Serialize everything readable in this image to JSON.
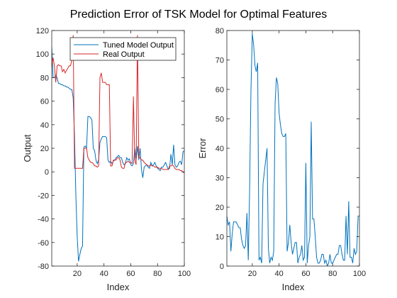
{
  "title": "Prediction Error of TSK Model for Optimal Features",
  "colors": {
    "tuned": "#0072BD",
    "real": "#D62728",
    "axis": "#262626"
  },
  "chart_data": [
    {
      "type": "line",
      "xlabel": "Index",
      "ylabel": "Output",
      "xlim": [
        1,
        100
      ],
      "ylim": [
        -80,
        120
      ],
      "xticks": [
        "20",
        "40",
        "60",
        "80",
        "100"
      ],
      "yticks": [
        "-80",
        "-60",
        "-40",
        "-20",
        "0",
        "20",
        "40",
        "60",
        "80",
        "100",
        "120"
      ],
      "legend": {
        "placement": "top-right",
        "entries": [
          "Tuned Model Output",
          "Real Output"
        ]
      },
      "series": [
        {
          "name": "Tuned Model Output",
          "color": "#0072BD",
          "x": [
            1,
            2,
            3,
            4,
            5,
            6,
            7,
            8,
            9,
            10,
            11,
            12,
            13,
            14,
            15,
            16,
            17,
            18,
            19,
            20,
            21,
            22,
            23,
            24,
            25,
            26,
            27,
            28,
            29,
            30,
            31,
            32,
            33,
            34,
            35,
            36,
            37,
            38,
            39,
            40,
            41,
            42,
            43,
            44,
            45,
            46,
            47,
            48,
            49,
            50,
            51,
            52,
            53,
            54,
            55,
            56,
            57,
            58,
            59,
            60,
            61,
            62,
            63,
            64,
            65,
            66,
            67,
            68,
            69,
            70,
            71,
            72,
            73,
            74,
            75,
            76,
            77,
            78,
            79,
            80,
            81,
            82,
            83,
            84,
            85,
            86,
            87,
            88,
            89,
            90,
            91,
            92,
            93,
            94,
            95,
            96,
            97,
            98,
            99,
            100
          ],
          "values": [
            106,
            80,
            80,
            82,
            80,
            75,
            75,
            74,
            74,
            73,
            73,
            72,
            72,
            71,
            70,
            70,
            63,
            30,
            -20,
            -55,
            -76,
            -70,
            -65,
            -63,
            21,
            22,
            20,
            47,
            47,
            46,
            44,
            20,
            18,
            10,
            7,
            10,
            25,
            28,
            30,
            30,
            30,
            29,
            10,
            8,
            9,
            7,
            9,
            10,
            12,
            13,
            14,
            12,
            12,
            8,
            6,
            7,
            12,
            10,
            11,
            6,
            5,
            7,
            20,
            10,
            22,
            10,
            20,
            2,
            -5,
            4,
            5,
            6,
            4,
            3,
            8,
            5,
            6,
            8,
            5,
            3,
            2,
            1,
            4,
            4,
            6,
            8,
            5,
            2,
            3,
            15,
            6,
            23,
            6,
            4,
            5,
            8,
            9,
            6,
            17,
            18
          ]
        },
        {
          "name": "Real Output",
          "color": "#D62728",
          "x": [
            1,
            2,
            3,
            4,
            5,
            6,
            7,
            8,
            9,
            10,
            11,
            12,
            13,
            14,
            15,
            16,
            17,
            18,
            19,
            20,
            21,
            22,
            23,
            24,
            25,
            26,
            27,
            28,
            29,
            30,
            31,
            32,
            33,
            34,
            35,
            36,
            37,
            38,
            39,
            40,
            41,
            42,
            43,
            44,
            45,
            46,
            47,
            48,
            49,
            50,
            51,
            52,
            53,
            54,
            55,
            56,
            57,
            58,
            59,
            60,
            61,
            62,
            63,
            64,
            65,
            66,
            67,
            68,
            69,
            70,
            71,
            72,
            73,
            74,
            75,
            76,
            77,
            78,
            79,
            80,
            81,
            82,
            83,
            84,
            85,
            86,
            87,
            88,
            89,
            90,
            91,
            92,
            93,
            94,
            95,
            96,
            97,
            98,
            99,
            100
          ],
          "values": [
            89,
            97,
            90,
            76,
            90,
            91,
            90,
            90,
            85,
            87,
            84,
            86,
            88,
            90,
            90,
            95,
            116,
            3,
            3,
            3,
            3,
            3,
            3,
            3,
            20,
            20,
            20,
            12,
            10,
            8,
            8,
            7,
            5,
            5,
            4,
            5,
            80,
            84,
            76,
            76,
            76,
            74,
            74,
            74,
            5,
            5,
            10,
            10,
            10,
            12,
            12,
            10,
            4,
            3,
            3,
            8,
            8,
            9,
            8,
            8,
            7,
            64,
            10,
            6,
            116,
            12,
            12,
            10,
            10,
            8,
            7,
            6,
            5,
            5,
            6,
            5,
            5,
            4,
            4,
            4,
            3,
            3,
            3,
            2,
            2,
            2,
            2,
            2,
            5,
            5,
            6,
            5,
            3,
            2,
            2,
            2,
            1,
            1,
            0,
            -1
          ]
        }
      ]
    },
    {
      "type": "line",
      "xlabel": "Index",
      "ylabel": "Error",
      "xlim": [
        1,
        100
      ],
      "ylim": [
        0,
        80
      ],
      "xticks": [
        "20",
        "40",
        "60",
        "80",
        "100"
      ],
      "yticks": [
        "0",
        "10",
        "20",
        "30",
        "40",
        "50",
        "60",
        "70",
        "80"
      ],
      "series": [
        {
          "color": "#0072BD",
          "x": [
            1,
            2,
            3,
            4,
            5,
            6,
            7,
            8,
            9,
            10,
            11,
            12,
            13,
            14,
            15,
            16,
            17,
            18,
            19,
            20,
            21,
            22,
            23,
            24,
            25,
            26,
            27,
            28,
            29,
            30,
            31,
            32,
            33,
            34,
            35,
            36,
            37,
            38,
            39,
            40,
            41,
            42,
            43,
            44,
            45,
            46,
            47,
            48,
            49,
            50,
            51,
            52,
            53,
            54,
            55,
            56,
            57,
            58,
            59,
            60,
            61,
            62,
            63,
            64,
            65,
            66,
            67,
            68,
            69,
            70,
            71,
            72,
            73,
            74,
            75,
            76,
            77,
            78,
            79,
            80,
            81,
            82,
            83,
            84,
            85,
            86,
            87,
            88,
            89,
            90,
            91,
            92,
            93,
            94,
            95,
            96,
            97,
            98,
            99,
            100
          ],
          "values": [
            17,
            14,
            15,
            5,
            11,
            15,
            15,
            15,
            14,
            13,
            13,
            9,
            7,
            6,
            7,
            18,
            2,
            26,
            60,
            79,
            75,
            68,
            66,
            69,
            2,
            3,
            1,
            28,
            32,
            36,
            40,
            6,
            1,
            3,
            2,
            5,
            55,
            64,
            62,
            52,
            48,
            45,
            44,
            44,
            45,
            5,
            8,
            14,
            8,
            4,
            6,
            8,
            8,
            1,
            3,
            4,
            7,
            2,
            3,
            35,
            1,
            7,
            10,
            49,
            16,
            16,
            10,
            3,
            1,
            1,
            2,
            4,
            4,
            1,
            2,
            0,
            1,
            4,
            1,
            1,
            2,
            3,
            4,
            4,
            7,
            7,
            4,
            2,
            2,
            17,
            4,
            22,
            3,
            3,
            1,
            6,
            4,
            5,
            17,
            17
          ]
        }
      ]
    }
  ]
}
